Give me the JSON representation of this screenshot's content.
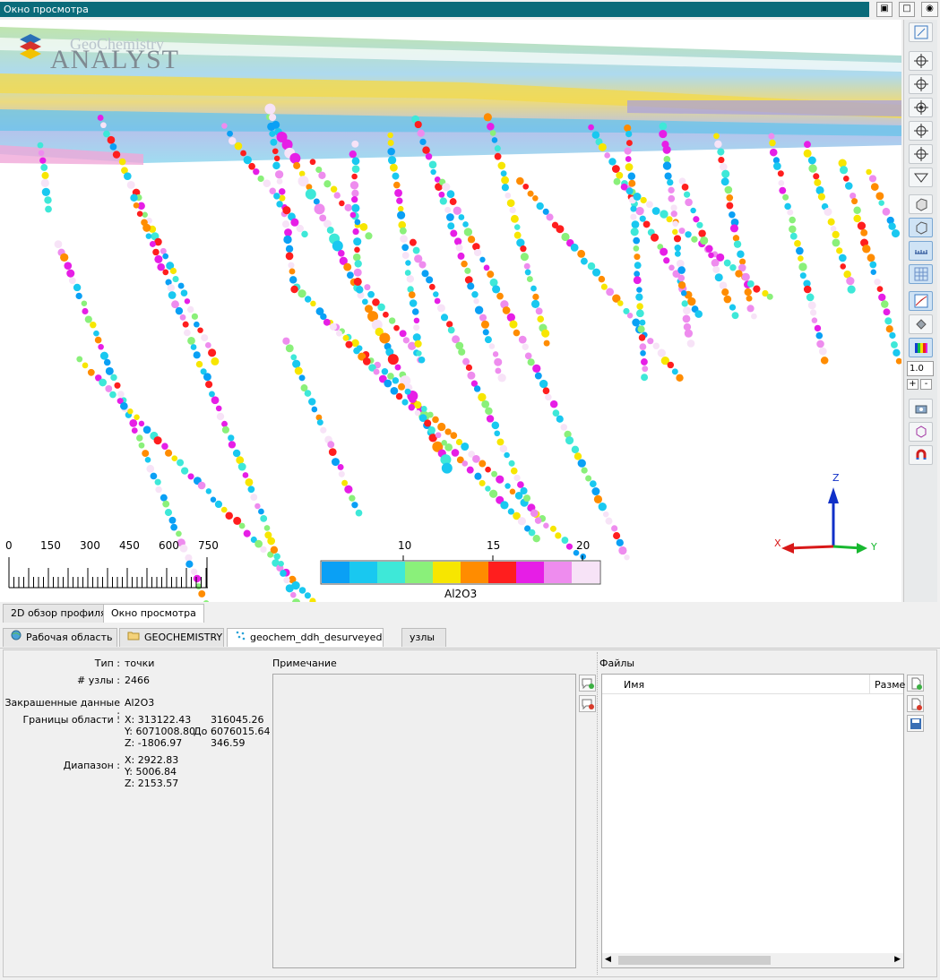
{
  "window": {
    "title": "Окно просмотра"
  },
  "logo": {
    "line1": "GeoChemistry",
    "line2": "ANALYST"
  },
  "scale_bar": {
    "ticks": [
      "0",
      "150",
      "300",
      "450",
      "600",
      "750"
    ]
  },
  "color_legend": {
    "variable": "Al2O3",
    "ticks": [
      "10",
      "15",
      "20"
    ],
    "colors": [
      "#0aa0f5",
      "#19c8f0",
      "#3ee8d8",
      "#8af07a",
      "#f7e600",
      "#ff8c00",
      "#ff1e1e",
      "#e61ee6",
      "#ee8cee",
      "#f7e3f7"
    ]
  },
  "axes": {
    "z": "Z",
    "x": "X",
    "y": "Y"
  },
  "toolbar": {
    "zoom_value": "1.0",
    "plus": "+",
    "minus": "-"
  },
  "view_tabs": [
    "2D обзор профиля",
    "Окно просмотра"
  ],
  "object_tabs": [
    "Рабочая область",
    "GEOCHEMISTRY",
    "geochem_ddh_desurveyed",
    "узлы"
  ],
  "properties": {
    "type_label": "Тип :",
    "type_value": "точки",
    "nodes_label": "# узлы :",
    "nodes_value": "2466",
    "colored_label": "Закрашенные данные :",
    "colored_value": "Al2O3",
    "bounds_label": "Границы области :",
    "bx_min": "X: 313122.43",
    "by_min": "Y: 6071008.80",
    "bz_min": "Z: -1806.97",
    "to_label": "До",
    "bx_max": "316045.26",
    "by_max": "6076015.64",
    "bz_max": "346.59",
    "range_label": "Диапазон :",
    "rx": "X: 2922.83",
    "ry": "Y: 5006.84",
    "rz": "Z: 2153.57"
  },
  "notes": {
    "header": "Примечание"
  },
  "files": {
    "header": "Файлы",
    "col_name": "Имя",
    "col_size": "Разме"
  }
}
